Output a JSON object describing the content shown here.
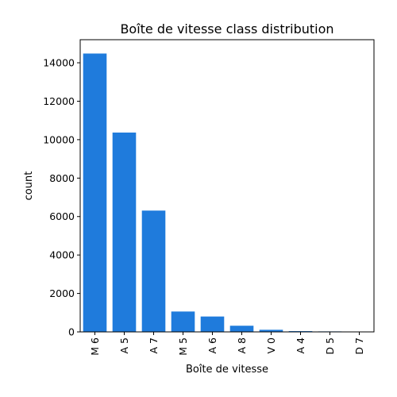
{
  "chart_data": {
    "type": "bar",
    "title": "Boîte de vitesse class distribution",
    "xlabel": "Boîte de vitesse",
    "ylabel": "count",
    "categories": [
      "M 6",
      "A 5",
      "A 7",
      "M 5",
      "A 6",
      "A 8",
      "V 0",
      "A 4",
      "D 5",
      "D 7"
    ],
    "values": [
      14480,
      10370,
      6310,
      1060,
      800,
      320,
      110,
      40,
      25,
      15
    ],
    "ylim": [
      0,
      15200
    ],
    "yticks": [
      0,
      2000,
      4000,
      6000,
      8000,
      10000,
      12000,
      14000
    ],
    "ytick_labels": [
      "0",
      "2000",
      "4000",
      "6000",
      "8000",
      "10000",
      "12000",
      "14000"
    ],
    "bar_color": "#1f7bdc",
    "grid": false,
    "legend": "none"
  }
}
